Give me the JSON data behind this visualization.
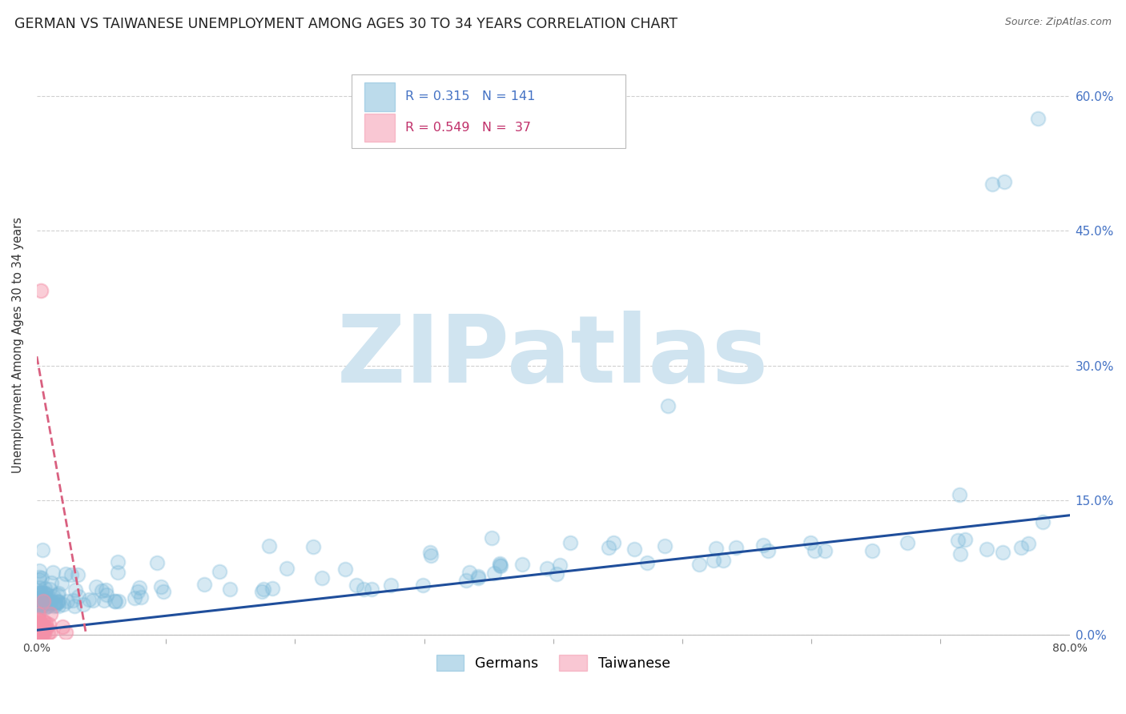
{
  "title": "GERMAN VS TAIWANESE UNEMPLOYMENT AMONG AGES 30 TO 34 YEARS CORRELATION CHART",
  "source": "Source: ZipAtlas.com",
  "ylabel": "Unemployment Among Ages 30 to 34 years",
  "xlim": [
    0.0,
    0.8
  ],
  "ylim": [
    -0.005,
    0.65
  ],
  "xticks_major": [
    0.0,
    0.8
  ],
  "xticks_minor": [
    0.1,
    0.2,
    0.3,
    0.4,
    0.5,
    0.6,
    0.7
  ],
  "yticks": [
    0.0,
    0.15,
    0.3,
    0.45,
    0.6
  ],
  "ytick_labels_right": [
    "0.0%",
    "15.0%",
    "30.0%",
    "45.0%",
    "60.0%"
  ],
  "german_color": "#7ab8d9",
  "taiwanese_color": "#f490a8",
  "german_R": 0.315,
  "german_N": 141,
  "taiwanese_R": 0.549,
  "taiwanese_N": 37,
  "blue_line_color": "#1f4e9b",
  "pink_line_color": "#d96080",
  "watermark": "ZIPatlas",
  "watermark_color": "#d0e4f0",
  "background_color": "#ffffff",
  "grid_color": "#d0d0d0",
  "title_fontsize": 12.5,
  "label_fontsize": 10.5,
  "tick_fontsize": 10,
  "legend_fontsize": 11.5,
  "seed": 42
}
